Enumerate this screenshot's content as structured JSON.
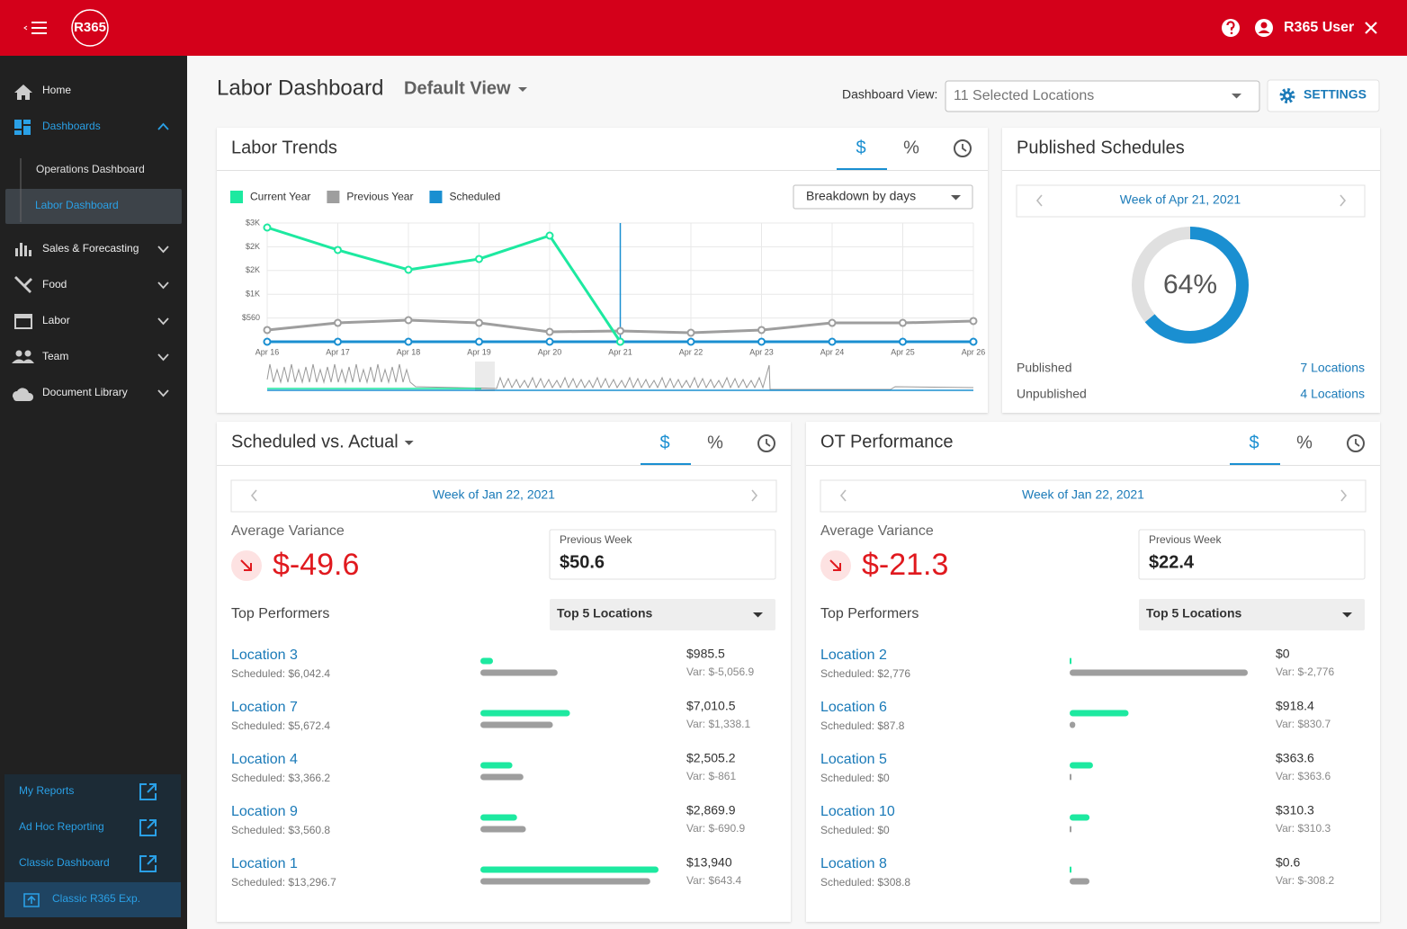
{
  "header": {
    "logo": "R365",
    "user": "R365 User"
  },
  "sidebar": {
    "nav": [
      {
        "label": "Home"
      },
      {
        "label": "Dashboards",
        "children": [
          "Operations Dashboard",
          "Labor Dashboard"
        ]
      },
      {
        "label": "Sales & Forecasting"
      },
      {
        "label": "Food"
      },
      {
        "label": "Labor"
      },
      {
        "label": "Team"
      },
      {
        "label": "Document Library"
      }
    ],
    "links": [
      "My Reports",
      "Ad Hoc Reporting",
      "Classic Dashboard",
      "Classic R365 Exp."
    ]
  },
  "toolbar": {
    "title": "Labor Dashboard",
    "view": "Default View",
    "dashboard_view_label": "Dashboard View:",
    "locations": "11 Selected Locations",
    "settings": "SETTINGS"
  },
  "labor_trends": {
    "title": "Labor Trends",
    "tabs": [
      "$",
      "%"
    ],
    "breakdown": "Breakdown by days"
  },
  "chart_data": {
    "type": "line",
    "categories": [
      "Apr 16",
      "Apr 17",
      "Apr 18",
      "Apr 19",
      "Apr 20",
      "Apr 21",
      "Apr 22",
      "Apr 23",
      "Apr 24",
      "Apr 25",
      "Apr 26"
    ],
    "series": [
      {
        "name": "Current Year",
        "color": "#1de9a0",
        "values": [
          2694,
          2164,
          1697,
          1952,
          2503,
          0,
          null,
          null,
          null,
          null,
          null
        ]
      },
      {
        "name": "Previous Year",
        "color": "#9e9e9e",
        "values": [
          276,
          445,
          509,
          445,
          233,
          255,
          212,
          276,
          445,
          445,
          488
        ]
      },
      {
        "name": "Scheduled",
        "color": "#1a8fd1",
        "values": [
          0,
          0,
          0,
          0,
          0,
          0,
          0,
          0,
          0,
          0,
          0
        ]
      }
    ],
    "ylim": [
      0,
      2800
    ],
    "yticks": [
      {
        "value": 560,
        "label": "$560"
      },
      {
        "value": 1120,
        "label": "$1K"
      },
      {
        "value": 1680,
        "label": "$2K"
      },
      {
        "value": 2240,
        "label": "$2K"
      },
      {
        "value": 2800,
        "label": "$3K"
      }
    ],
    "grid": true
  },
  "published_schedules": {
    "title": "Published Schedules",
    "week": "Week of Apr 21, 2021",
    "percent": 64,
    "percent_label": "64%",
    "rows": [
      {
        "label": "Published",
        "value": "7 Locations"
      },
      {
        "label": "Unpublished",
        "value": "4 Locations"
      }
    ]
  },
  "scheduled_vs_actual": {
    "title": "Scheduled vs. Actual",
    "tabs": [
      "$",
      "%"
    ],
    "week": "Week of Jan 22, 2021",
    "average_variance_label": "Average Variance",
    "average_variance": "$-49.6",
    "previous_week_label": "Previous Week",
    "previous_week": "$50.6",
    "top_performers_label": "Top Performers",
    "top_select": "Top 5 Locations",
    "rows": [
      {
        "name": "Location 3",
        "scheduled": 6042.4,
        "scheduled_label": "Scheduled: $6,042.4",
        "actual": 985.5,
        "actual_label": "$985.5",
        "variance_label": "Var: $-5,056.9"
      },
      {
        "name": "Location 7",
        "scheduled": 5672.4,
        "scheduled_label": "Scheduled: $5,672.4",
        "actual": 7010.5,
        "actual_label": "$7,010.5",
        "variance_label": "Var: $1,338.1"
      },
      {
        "name": "Location 4",
        "scheduled": 3366.2,
        "scheduled_label": "Scheduled: $3,366.2",
        "actual": 2505.2,
        "actual_label": "$2,505.2",
        "variance_label": "Var: $-861"
      },
      {
        "name": "Location 9",
        "scheduled": 3560.8,
        "scheduled_label": "Scheduled: $3,560.8",
        "actual": 2869.9,
        "actual_label": "$2,869.9",
        "variance_label": "Var: $-690.9"
      },
      {
        "name": "Location 1",
        "scheduled": 13296.7,
        "scheduled_label": "Scheduled: $13,296.7",
        "actual": 13940,
        "actual_label": "$13,940",
        "variance_label": "Var: $643.4"
      }
    ]
  },
  "ot_performance": {
    "title": "OT Performance",
    "tabs": [
      "$",
      "%"
    ],
    "week": "Week of Jan 22, 2021",
    "average_variance_label": "Average Variance",
    "average_variance": "$-21.3",
    "previous_week_label": "Previous Week",
    "previous_week": "$22.4",
    "top_performers_label": "Top Performers",
    "top_select": "Top 5 Locations",
    "rows": [
      {
        "name": "Location 2",
        "scheduled": 2776,
        "scheduled_label": "Scheduled: $2,776",
        "actual": 0,
        "actual_label": "$0",
        "variance_label": "Var: $-2,776"
      },
      {
        "name": "Location 6",
        "scheduled": 87.8,
        "scheduled_label": "Scheduled: $87.8",
        "actual": 918.4,
        "actual_label": "$918.4",
        "variance_label": "Var: $830.7"
      },
      {
        "name": "Location 5",
        "scheduled": 0,
        "scheduled_label": "Scheduled: $0",
        "actual": 363.6,
        "actual_label": "$363.6",
        "variance_label": "Var: $363.6"
      },
      {
        "name": "Location 10",
        "scheduled": 0,
        "scheduled_label": "Scheduled: $0",
        "actual": 310.3,
        "actual_label": "$310.3",
        "variance_label": "Var: $310.3"
      },
      {
        "name": "Location 8",
        "scheduled": 308.8,
        "scheduled_label": "Scheduled: $308.8",
        "actual": 0.6,
        "actual_label": "$0.6",
        "variance_label": "Var: $-308.2"
      }
    ]
  }
}
